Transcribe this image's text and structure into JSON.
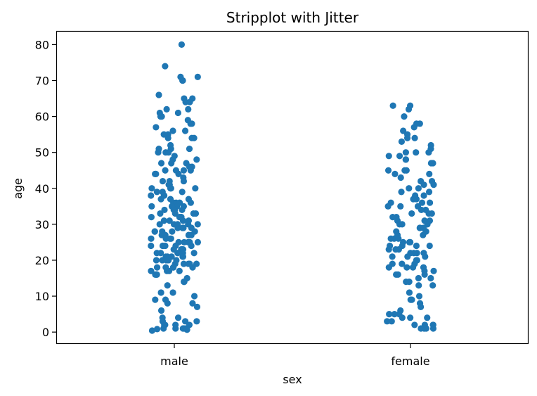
{
  "chart_data": {
    "type": "scatter",
    "title": "Stripplot with Jitter",
    "xlabel": "sex",
    "ylabel": "age",
    "categories": [
      "male",
      "female"
    ],
    "ylim": [
      -3.3,
      83.8
    ],
    "yticks": [
      0,
      10,
      20,
      30,
      40,
      50,
      60,
      70,
      80
    ],
    "grid": false,
    "legend": "none",
    "marker_color": "#1f77b4",
    "jitter": true,
    "series": [
      {
        "category": "male",
        "values": [
          80,
          74,
          71,
          71,
          70,
          70,
          66,
          65,
          65,
          64,
          64,
          62,
          62,
          61,
          61,
          60,
          60,
          59,
          58,
          58,
          57,
          56,
          56,
          55,
          55,
          54,
          54,
          54,
          52,
          51,
          51,
          51,
          50,
          50,
          50,
          49,
          48,
          48,
          47,
          47,
          47,
          46,
          46,
          45,
          45,
          45,
          45,
          44,
          44,
          44,
          43,
          42,
          42,
          42,
          41,
          41,
          40,
          40,
          40,
          40,
          39,
          39,
          39,
          38,
          38,
          38,
          37,
          37,
          37,
          36,
          36,
          36,
          36,
          35,
          35,
          35,
          35,
          34,
          34,
          34,
          34,
          33,
          33,
          33,
          33,
          32,
          32,
          32,
          32,
          31,
          31,
          31,
          31,
          30,
          30,
          30,
          30,
          30,
          29,
          29,
          29,
          29,
          28,
          28,
          28,
          28,
          28,
          27,
          27,
          27,
          27,
          27,
          26,
          26,
          26,
          26,
          25,
          25,
          25,
          25,
          25,
          24,
          24,
          24,
          24,
          24,
          23,
          23,
          23,
          23,
          23,
          22,
          22,
          22,
          22,
          22,
          21,
          21,
          21,
          21,
          21,
          20,
          20,
          20,
          20,
          20,
          19,
          19,
          19,
          19,
          19,
          18,
          18,
          18,
          18,
          18,
          17,
          17,
          17,
          17,
          16,
          16,
          16,
          16,
          15,
          14,
          14,
          13,
          11,
          11,
          10,
          9,
          9,
          8,
          8,
          7,
          6,
          4,
          4,
          3,
          3,
          3,
          2,
          2,
          2,
          2,
          1,
          1,
          1,
          1,
          1,
          0.83,
          0.67,
          0.42
        ]
      },
      {
        "category": "female",
        "values": [
          63,
          63,
          62,
          60,
          58,
          58,
          57,
          56,
          55,
          54,
          54,
          53,
          52,
          51,
          50,
          50,
          50,
          49,
          49,
          48,
          48,
          47,
          47,
          45,
          45,
          45,
          44,
          44,
          43,
          42,
          42,
          41,
          41,
          40,
          40,
          39,
          39,
          38,
          38,
          37,
          37,
          36,
          36,
          36,
          35,
          35,
          35,
          34,
          34,
          33,
          33,
          33,
          32,
          32,
          31,
          31,
          31,
          30,
          30,
          30,
          29,
          29,
          29,
          28,
          28,
          28,
          27,
          27,
          26,
          26,
          26,
          25,
          25,
          25,
          24,
          24,
          24,
          24,
          23,
          23,
          23,
          22,
          22,
          22,
          22,
          21,
          21,
          21,
          20,
          20,
          19,
          19,
          19,
          18,
          18,
          18,
          18,
          17,
          17,
          16,
          16,
          16,
          15,
          15,
          14,
          14,
          13,
          13,
          11,
          10,
          9,
          9,
          8,
          7,
          6,
          5,
          5,
          5,
          4,
          4,
          4,
          3,
          3,
          2,
          2,
          2,
          2,
          1,
          1,
          1,
          1
        ]
      }
    ]
  }
}
